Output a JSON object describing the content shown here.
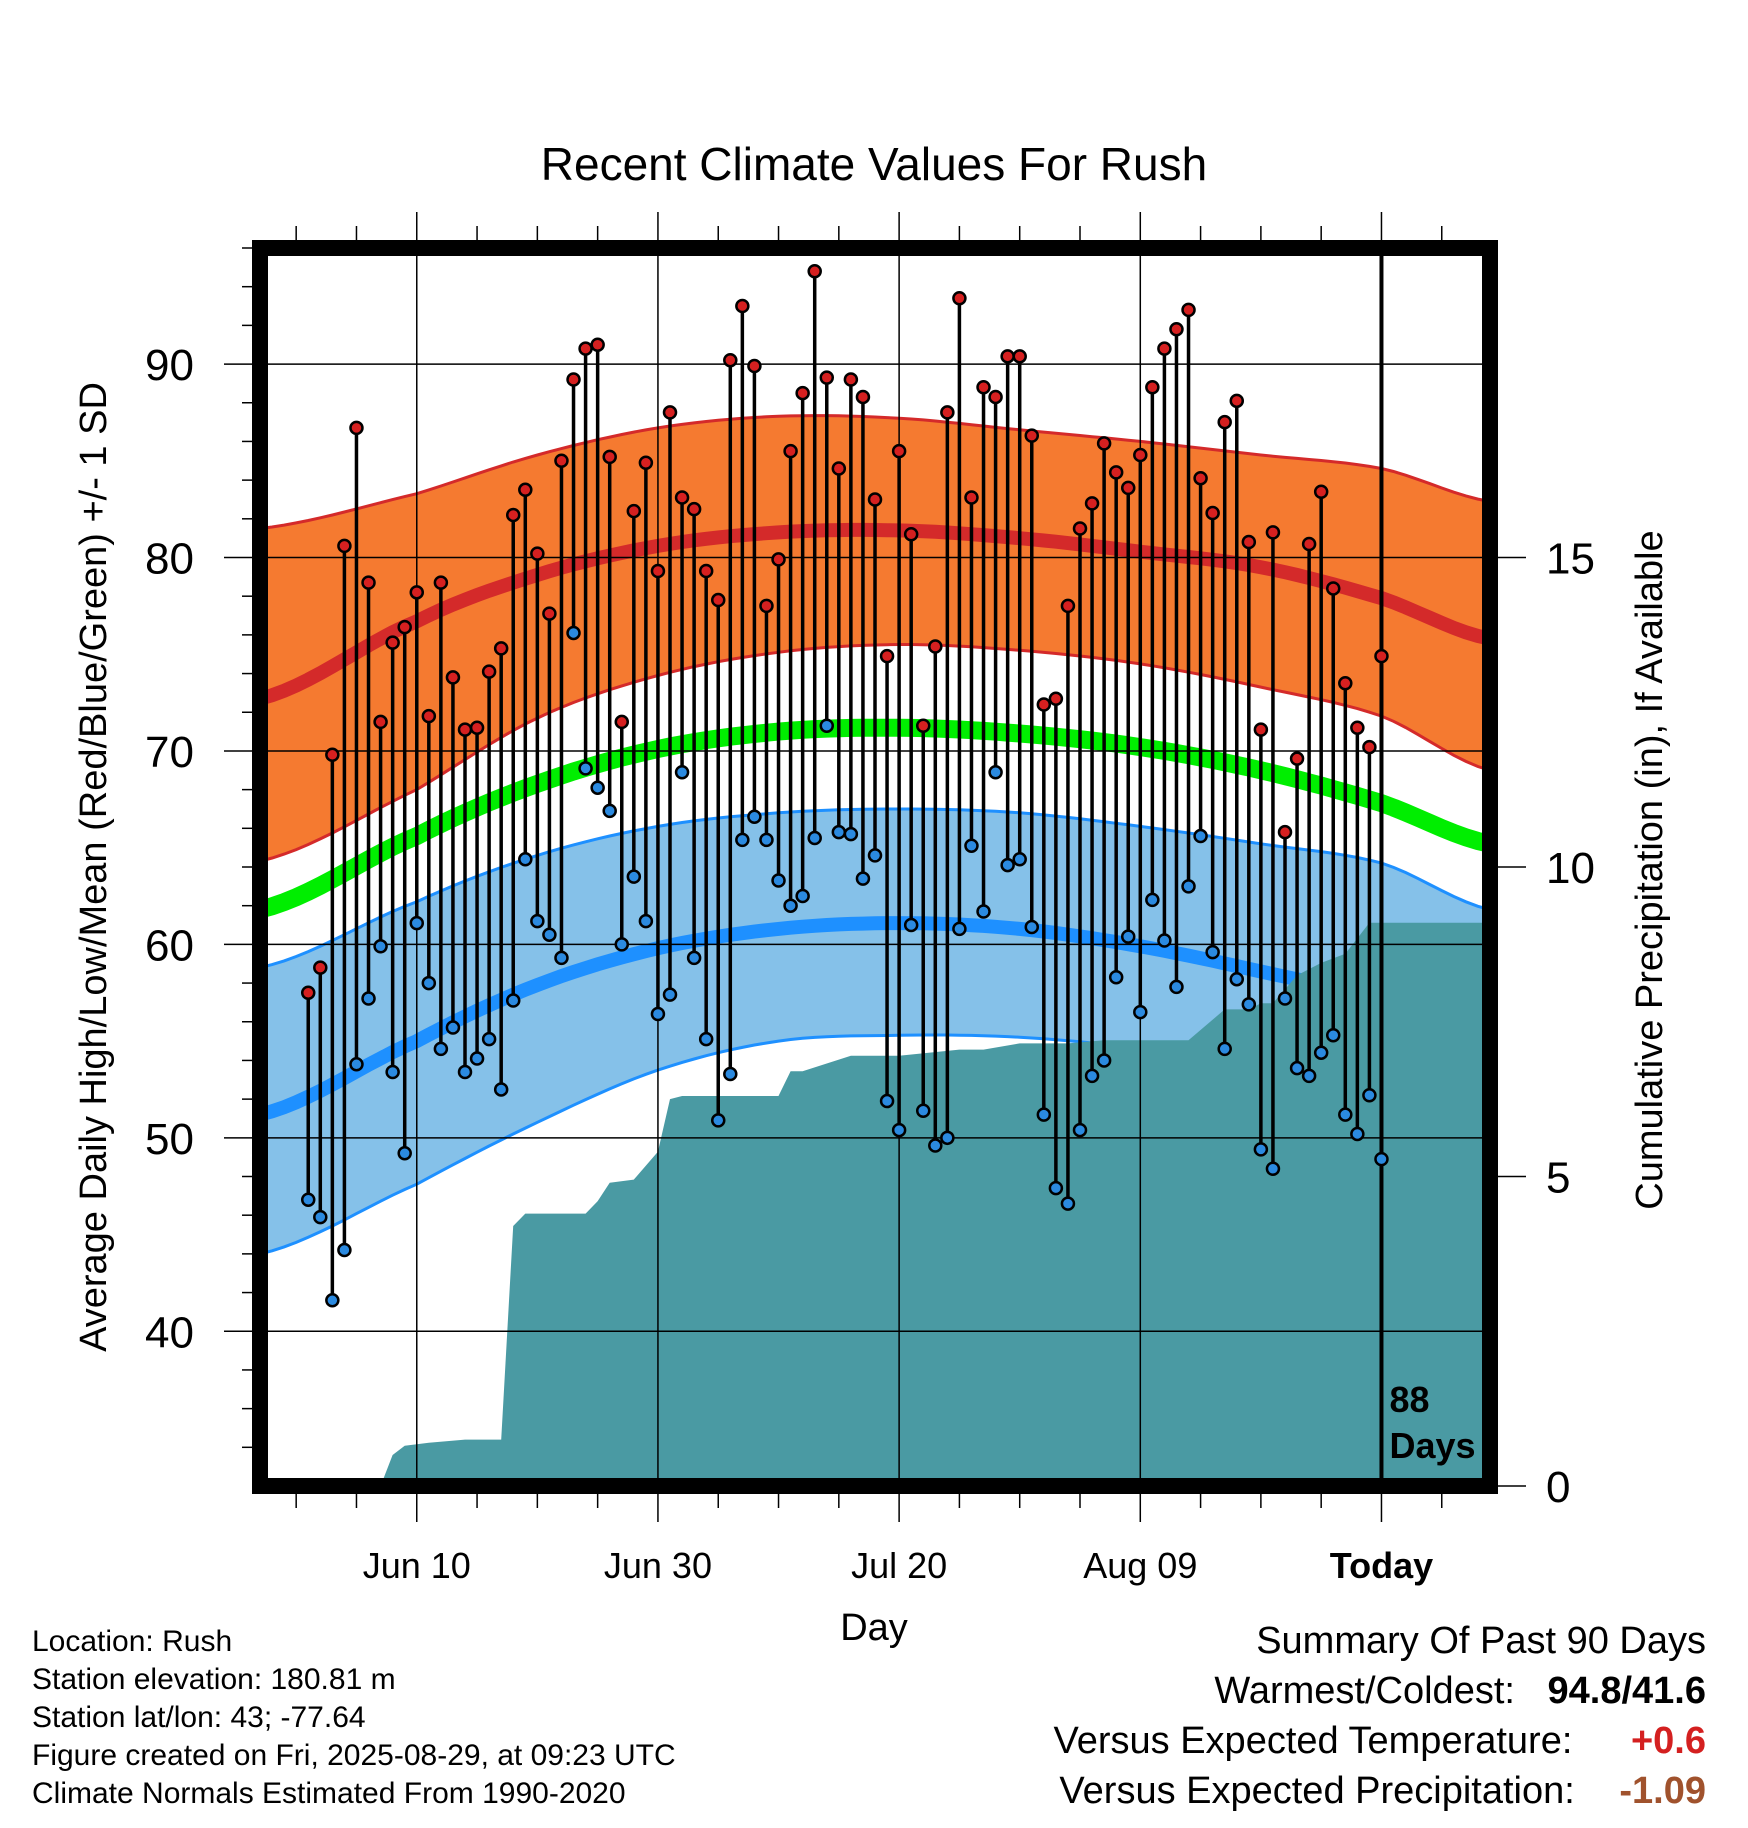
{
  "chart_data": {
    "type": "line",
    "title": "Recent Climate Values For Rush",
    "xlabel": "Day",
    "ylabel": "Average Daily High/Low/Mean (Red/Blue/Green) +/- 1 SD",
    "y2label": "Cumulative Precipitation (in), If Available",
    "ylim": [
      32,
      96
    ],
    "y2lim": [
      0,
      20
    ],
    "xlim_days": [
      -93,
      9
    ],
    "x_tick_labels": [
      {
        "label": "Jun 10",
        "day": -80
      },
      {
        "label": "Jun 30",
        "day": -60
      },
      {
        "label": "Jul 20",
        "day": -40
      },
      {
        "label": "Aug 09",
        "day": -20
      },
      {
        "label": "Today",
        "day": 0
      }
    ],
    "y_ticks": [
      40,
      50,
      60,
      70,
      80,
      90
    ],
    "y2_ticks": [
      0,
      5,
      10,
      15
    ],
    "today_marker": {
      "label_line1": "88",
      "label_line2": "Days"
    },
    "normals": {
      "x": [
        -93,
        -80,
        -70,
        -60,
        -50,
        -40,
        -30,
        -20,
        -10,
        0,
        9
      ],
      "high_mean": [
        72.7,
        76.7,
        79.1,
        80.6,
        81.3,
        81.4,
        81.0,
        80.3,
        79.5,
        77.9,
        75.8
      ],
      "high_upper": [
        81.5,
        83.3,
        85.3,
        86.7,
        87.3,
        87.2,
        86.6,
        86.0,
        85.3,
        84.6,
        82.9
      ],
      "high_lower": [
        64.3,
        68.0,
        71.7,
        73.9,
        75.1,
        75.5,
        75.2,
        74.5,
        73.3,
        71.8,
        69.0
      ],
      "mean": [
        61.8,
        65.6,
        68.3,
        70.1,
        71.0,
        71.2,
        70.9,
        70.2,
        69.0,
        67.3,
        65.2
      ],
      "low_mean": [
        51.2,
        55.0,
        57.9,
        59.8,
        60.8,
        61.1,
        60.8,
        59.9,
        58.6,
        57.1,
        54.6
      ],
      "low_upper": [
        58.8,
        62.2,
        64.6,
        66.1,
        66.8,
        67.0,
        66.8,
        66.1,
        65.2,
        64.2,
        61.8
      ],
      "low_lower": [
        44.0,
        47.6,
        50.8,
        53.5,
        55.0,
        55.3,
        55.2,
        54.6,
        53.5,
        51.8,
        47.8
      ]
    },
    "daily_highs": [
      57.5,
      58.8,
      69.8,
      80.6,
      86.7,
      78.7,
      71.5,
      75.6,
      76.4,
      78.2,
      71.8,
      78.7,
      73.8,
      71.1,
      71.2,
      74.1,
      75.3,
      82.2,
      83.5,
      80.2,
      77.1,
      85.0,
      89.2,
      90.8,
      91.0,
      85.2,
      71.5,
      82.4,
      84.9,
      79.3,
      87.5,
      83.1,
      82.5,
      79.3,
      77.8,
      90.2,
      93.0,
      89.9,
      77.5,
      79.9,
      85.5,
      88.5,
      94.8,
      89.3,
      84.6,
      89.2,
      88.3,
      83.0,
      74.9,
      85.5,
      81.2,
      71.3,
      75.4,
      87.5,
      93.4,
      83.1,
      88.8,
      88.3,
      90.4,
      90.4,
      86.3,
      72.4,
      72.7,
      77.5,
      81.5,
      82.8,
      85.9,
      84.4,
      83.6,
      85.3,
      88.8,
      90.8,
      91.8,
      92.8,
      84.1,
      82.3,
      87.0,
      88.1,
      80.8,
      71.1,
      81.3,
      65.8,
      69.6,
      80.7,
      83.4,
      78.4,
      73.5,
      71.2,
      70.2,
      74.9
    ],
    "daily_lows": [
      46.8,
      45.9,
      41.6,
      44.2,
      53.8,
      57.2,
      59.9,
      53.4,
      49.2,
      61.1,
      58.0,
      54.6,
      55.7,
      53.4,
      54.1,
      55.1,
      52.5,
      57.1,
      64.4,
      61.2,
      60.5,
      59.3,
      76.1,
      69.1,
      68.1,
      66.9,
      60.0,
      63.5,
      61.2,
      56.4,
      57.4,
      68.9,
      59.3,
      55.1,
      50.9,
      53.3,
      65.4,
      66.6,
      65.4,
      63.3,
      62.0,
      62.5,
      65.5,
      71.3,
      65.8,
      65.7,
      63.4,
      64.6,
      51.9,
      50.4,
      61.0,
      51.4,
      49.6,
      50.0,
      60.8,
      65.1,
      61.7,
      68.9,
      64.1,
      64.4,
      60.9,
      51.2,
      47.4,
      46.6,
      50.4,
      53.2,
      54.0,
      58.3,
      60.4,
      56.5,
      62.3,
      60.2,
      57.8,
      63.0,
      65.6,
      59.6,
      54.6,
      58.2,
      56.9,
      49.4,
      48.4,
      57.2,
      53.6,
      53.2,
      54.4,
      55.3,
      51.2,
      50.2,
      52.2,
      48.9
    ],
    "precip_cumulative": {
      "x": [
        -83,
        -82,
        -81,
        -79,
        -76,
        -73,
        -72,
        -71,
        -70,
        -66,
        -65,
        -64,
        -62,
        -60,
        -59,
        -58,
        -55,
        -52,
        -51,
        -50,
        -49,
        -48,
        -44,
        -42,
        -40,
        -35,
        -33,
        -30,
        -28,
        -26,
        -23,
        -20,
        -17,
        -16,
        -13,
        -11,
        -10,
        -9,
        -7,
        -5,
        -3,
        -2,
        -1,
        0
      ],
      "values": [
        0.0,
        0.5,
        0.65,
        0.7,
        0.75,
        0.75,
        4.2,
        4.4,
        4.4,
        4.4,
        4.6,
        4.9,
        4.95,
        5.4,
        6.25,
        6.3,
        6.3,
        6.3,
        6.3,
        6.3,
        6.7,
        6.7,
        6.95,
        6.95,
        6.95,
        7.05,
        7.05,
        7.15,
        7.15,
        7.15,
        7.2,
        7.2,
        7.2,
        7.2,
        7.7,
        7.7,
        7.8,
        7.8,
        8.25,
        8.45,
        8.6,
        8.85,
        9.1,
        9.1
      ]
    },
    "grid": true,
    "legend": "none"
  },
  "station_info": {
    "location": "Location: Rush",
    "elevation": "Station elevation: 180.81 m",
    "latlon": "Station lat/lon: 43; -77.64",
    "created": "Figure created on Fri, 2025-08-29, at 09:23 UTC",
    "normals": "Climate Normals Estimated From 1990-2020"
  },
  "summary": {
    "heading": "Summary Of Past 90 Days",
    "warmest_coldest_label": "Warmest/Coldest:",
    "warmest_coldest_value": "94.8/41.6",
    "temp_label": "Versus Expected Temperature:",
    "temp_value": "+0.6",
    "precip_label": "Versus Expected Precipitation:",
    "precip_value": "-1.09"
  },
  "colors": {
    "high_band": "#f57a30",
    "high_line": "#d42a2a",
    "mean_line": "#00ee00",
    "low_band": "#85c1e9",
    "low_line": "#1e90ff",
    "precip_fill": "#4a9aa3",
    "high_marker": "#d62020",
    "low_marker": "#2b8ae0",
    "temp_delta": "#d42020",
    "precip_delta": "#a0522d"
  }
}
